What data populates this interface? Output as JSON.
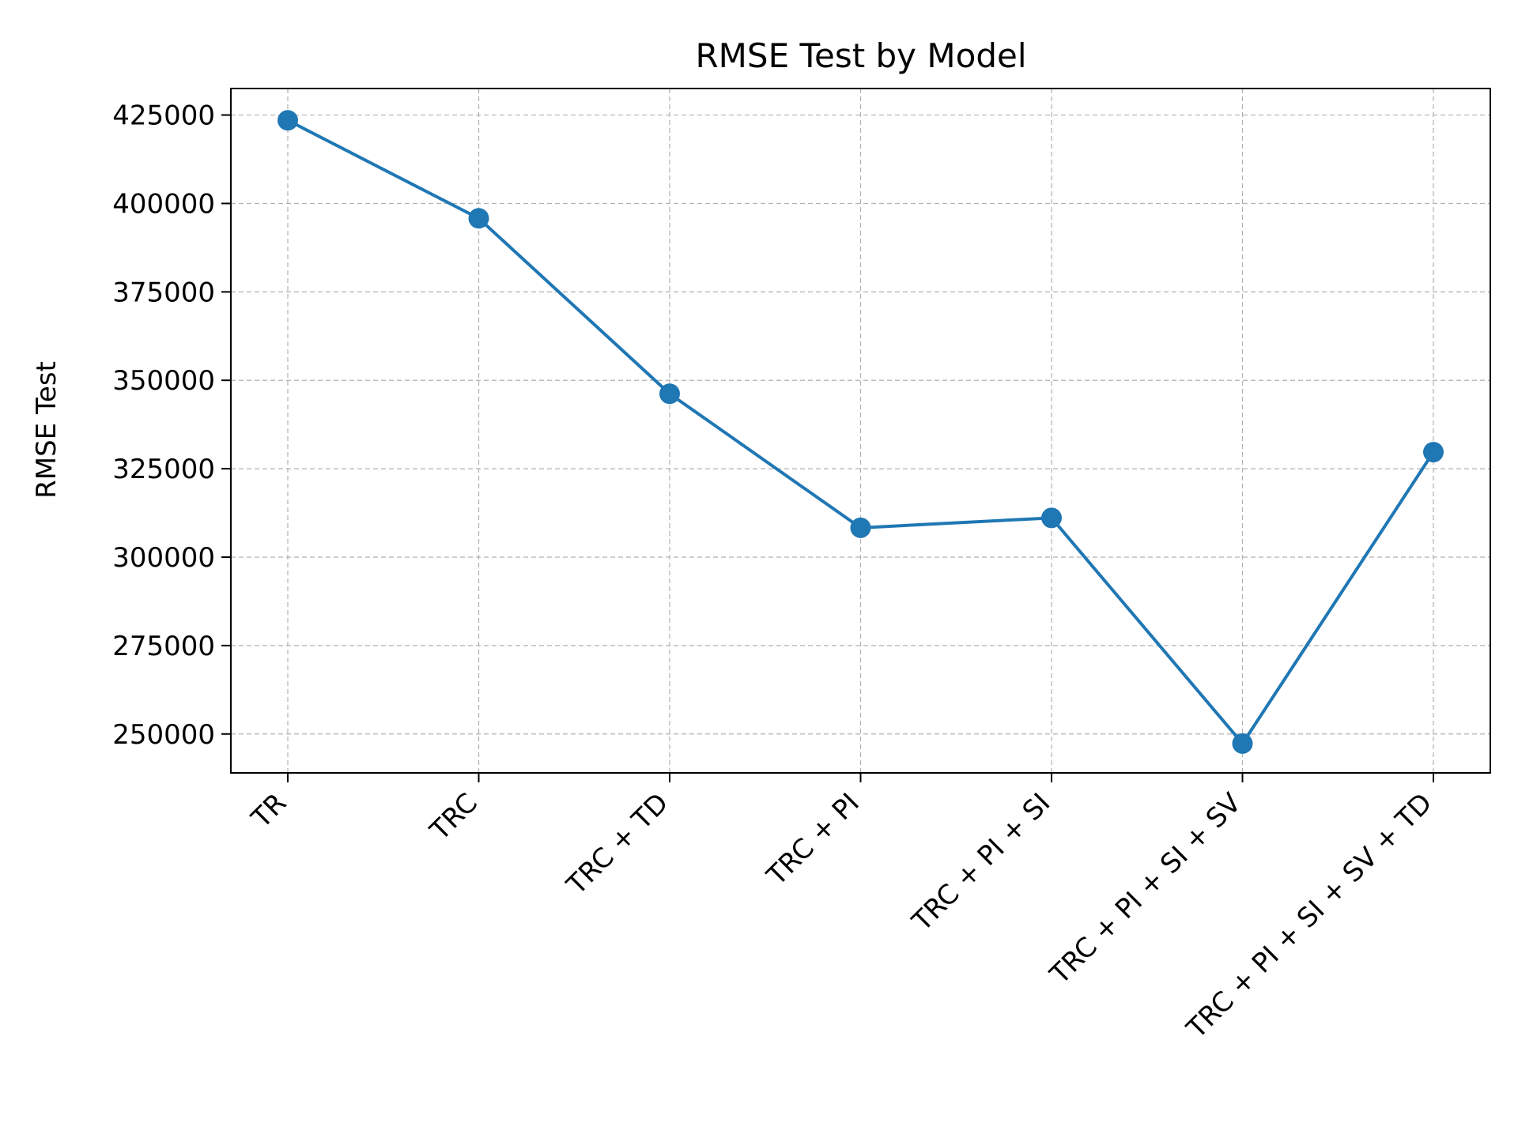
{
  "chart_data": {
    "type": "line",
    "title": "RMSE Test by Model",
    "xlabel": "",
    "ylabel": "RMSE Test",
    "categories": [
      "TR",
      "TRC",
      "TRC + TD",
      "TRC + PI",
      "TRC + PI + SI",
      "TRC + PI + SI + SV",
      "TRC + PI + SI + SV + TD"
    ],
    "series": [
      {
        "name": "RMSE Test",
        "color": "#1f77b4",
        "values": [
          423500,
          395800,
          346200,
          308300,
          311100,
          247300,
          329700
        ]
      }
    ],
    "yticks": [
      250000,
      275000,
      300000,
      325000,
      350000,
      375000,
      400000,
      425000
    ],
    "ylim": [
      239000,
      432500
    ],
    "grid": true,
    "marker": "circle"
  }
}
